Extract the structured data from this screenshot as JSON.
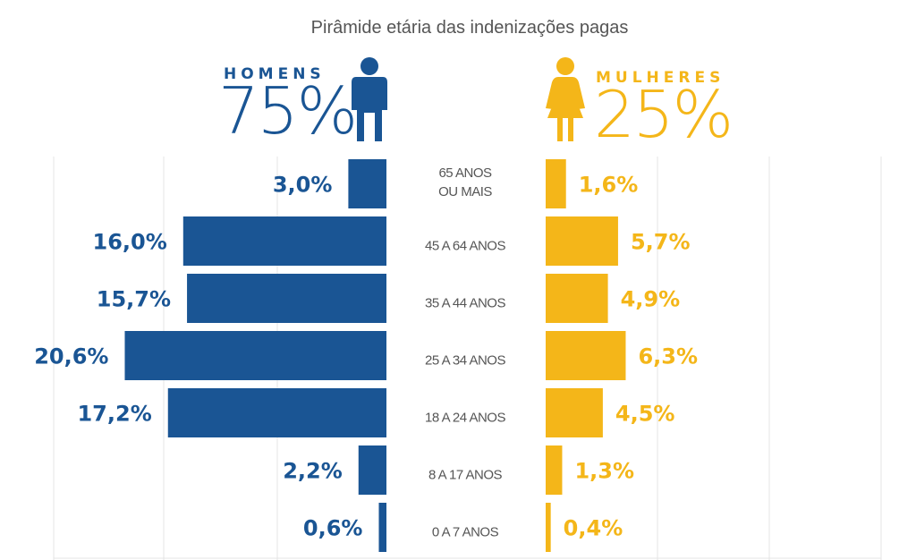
{
  "chart_data": {
    "type": "bar",
    "orientation": "horizontal-population-pyramid",
    "title": "Pirâmide etária das indenizações pagas",
    "categories": [
      [
        "65 ANOS",
        "OU MAIS"
      ],
      [
        "45 A 64 ANOS"
      ],
      [
        "35 A 44 ANOS"
      ],
      [
        "25 A 34 ANOS"
      ],
      [
        "18 A 24 ANOS"
      ],
      [
        "8 A 17 ANOS"
      ],
      [
        "0 A 7 ANOS"
      ]
    ],
    "series": [
      {
        "name": "HOMENS",
        "total": "75%",
        "color": "#1a5594",
        "side": "left",
        "values": [
          3.0,
          16.0,
          15.7,
          20.6,
          17.2,
          2.2,
          0.6
        ],
        "labels": [
          "3,0%",
          "16,0%",
          "15,7%",
          "20,6%",
          "17,2%",
          "2,2%",
          "0,6%"
        ]
      },
      {
        "name": "MULHERES",
        "total": "25%",
        "color": "#f4b619",
        "side": "right",
        "values": [
          1.6,
          5.7,
          4.9,
          6.3,
          4.5,
          1.3,
          0.4
        ],
        "labels": [
          "1,6%",
          "5,7%",
          "4,9%",
          "6,3%",
          "4,5%",
          "1,3%",
          "0,4%"
        ]
      }
    ],
    "grid": true,
    "gridline_color": "#e4e4e4",
    "icons": [
      "man-icon",
      "woman-icon"
    ]
  }
}
